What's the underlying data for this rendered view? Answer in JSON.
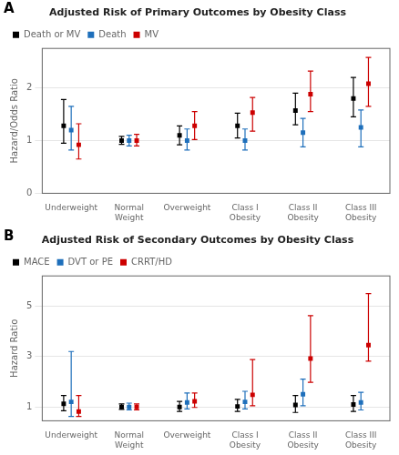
{
  "chart_data": [
    {
      "type": "errorbar",
      "title": "Adjusted Risk of Primary Outcomes by Obesity Class",
      "annotations": [
        "A"
      ],
      "ylabel": "Hazard/Odds Ratio",
      "categories": [
        "Underweight",
        "Normal\nWeight",
        "Overweight",
        "Class I\nObesity",
        "Class II\nObesity",
        "Class III\nObesity"
      ],
      "ylim": [
        0,
        2.75
      ],
      "yticks": [
        0,
        1,
        2
      ],
      "grid": "y",
      "legend": "upper left",
      "marker": "square",
      "series": [
        {
          "name": "Death or MV",
          "color": "#000000",
          "values": [
            1.28,
            1.0,
            1.1,
            1.28,
            1.57,
            1.8
          ],
          "lo": [
            0.95,
            0.93,
            0.92,
            1.05,
            1.3,
            1.45
          ],
          "hi": [
            1.78,
            1.08,
            1.28,
            1.52,
            1.9,
            2.2
          ]
        },
        {
          "name": "Death",
          "color": "#1e6fbb",
          "values": [
            1.2,
            1.0,
            1.0,
            1.0,
            1.15,
            1.25
          ],
          "lo": [
            0.82,
            0.9,
            0.82,
            0.82,
            0.88,
            0.88
          ],
          "hi": [
            1.65,
            1.1,
            1.22,
            1.22,
            1.42,
            1.58
          ]
        },
        {
          "name": "MV",
          "color": "#cc0000",
          "values": [
            0.92,
            1.0,
            1.28,
            1.53,
            1.88,
            2.08
          ],
          "lo": [
            0.65,
            0.9,
            1.02,
            1.18,
            1.55,
            1.65
          ],
          "hi": [
            1.32,
            1.12,
            1.55,
            1.82,
            2.32,
            2.58
          ]
        }
      ]
    },
    {
      "type": "errorbar",
      "title": "Adjusted Risk of Secondary Outcomes by Obesity Class",
      "annotations": [
        "B"
      ],
      "ylabel": "Hazard Ratio",
      "categories": [
        "Underweight",
        "Normal\nWeight",
        "Overweight",
        "Class I\nObesity",
        "Class II\nObesity",
        "Class III\nObesity"
      ],
      "ylim": [
        0.45,
        6.2
      ],
      "yticks": [
        1,
        3,
        5
      ],
      "grid": "y",
      "legend": "upper left",
      "marker": "square",
      "series": [
        {
          "name": "MACE",
          "color": "#000000",
          "values": [
            1.12,
            1.0,
            1.0,
            1.02,
            1.08,
            1.1
          ],
          "lo": [
            0.85,
            0.9,
            0.82,
            0.82,
            0.78,
            0.82
          ],
          "hi": [
            1.45,
            1.12,
            1.22,
            1.3,
            1.45,
            1.45
          ]
        },
        {
          "name": "DVT or PE",
          "color": "#1e6fbb",
          "values": [
            1.2,
            1.0,
            1.18,
            1.2,
            1.5,
            1.18
          ],
          "lo": [
            0.62,
            0.88,
            0.92,
            0.92,
            1.05,
            0.88
          ],
          "hi": [
            3.2,
            1.15,
            1.55,
            1.62,
            2.1,
            1.58
          ]
        },
        {
          "name": "CRRT/HD",
          "color": "#cc0000",
          "values": [
            0.82,
            1.0,
            1.22,
            1.48,
            2.92,
            3.45
          ],
          "lo": [
            0.62,
            0.88,
            0.98,
            1.05,
            1.98,
            2.82
          ],
          "hi": [
            1.45,
            1.12,
            1.55,
            2.88,
            4.62,
            5.5
          ]
        }
      ]
    }
  ]
}
